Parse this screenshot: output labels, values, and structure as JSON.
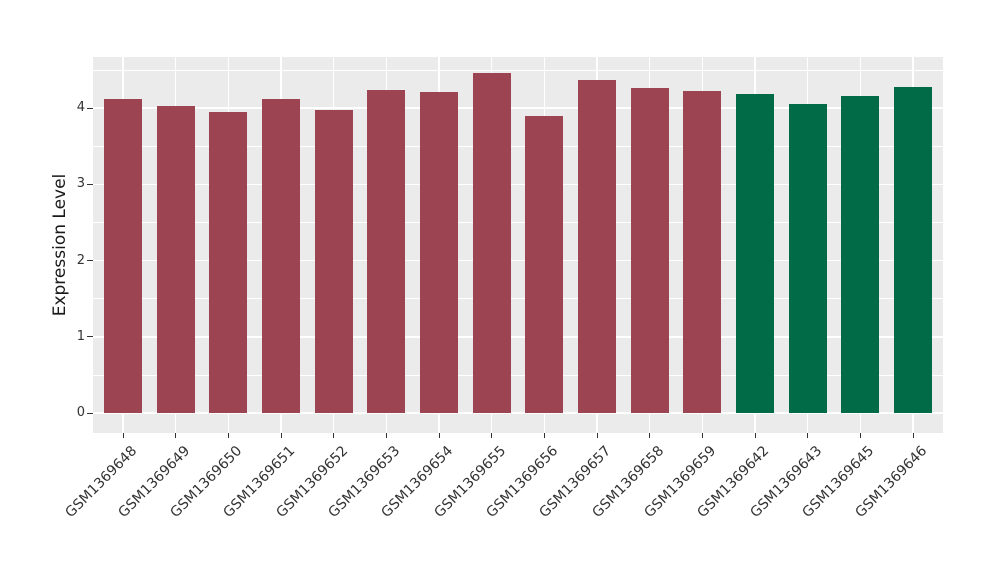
{
  "chart_data": {
    "type": "bar",
    "ylabel": "Expression Level",
    "xlabel": "",
    "categories": [
      "GSM1369648",
      "GSM1369649",
      "GSM1369650",
      "GSM1369651",
      "GSM1369652",
      "GSM1369653",
      "GSM1369654",
      "GSM1369655",
      "GSM1369656",
      "GSM1369657",
      "GSM1369658",
      "GSM1369659",
      "GSM1369642",
      "GSM1369643",
      "GSM1369645",
      "GSM1369646"
    ],
    "values": [
      4.12,
      4.03,
      3.95,
      4.12,
      3.97,
      4.24,
      4.21,
      4.46,
      3.89,
      4.37,
      4.27,
      4.23,
      4.19,
      4.05,
      4.16,
      4.28
    ],
    "bar_colors": [
      "#9D4452",
      "#9D4452",
      "#9D4452",
      "#9D4452",
      "#9D4452",
      "#9D4452",
      "#9D4452",
      "#9D4452",
      "#9D4452",
      "#9D4452",
      "#9D4452",
      "#9D4452",
      "#016B48",
      "#016B48",
      "#016B48",
      "#016B48"
    ],
    "group_colors": {
      "maroon": "#9D4452",
      "green": "#016B48"
    },
    "yticks": [
      0,
      1,
      2,
      3,
      4
    ],
    "yticks_minor": [
      0.5,
      1.5,
      2.5,
      3.5,
      4.5
    ],
    "ylim": [
      -0.26,
      4.67
    ],
    "panel_bg": "#EBEBEB",
    "grid_color": "#FFFFFF",
    "tick_color": "#333333",
    "legend": "none",
    "title": ""
  }
}
